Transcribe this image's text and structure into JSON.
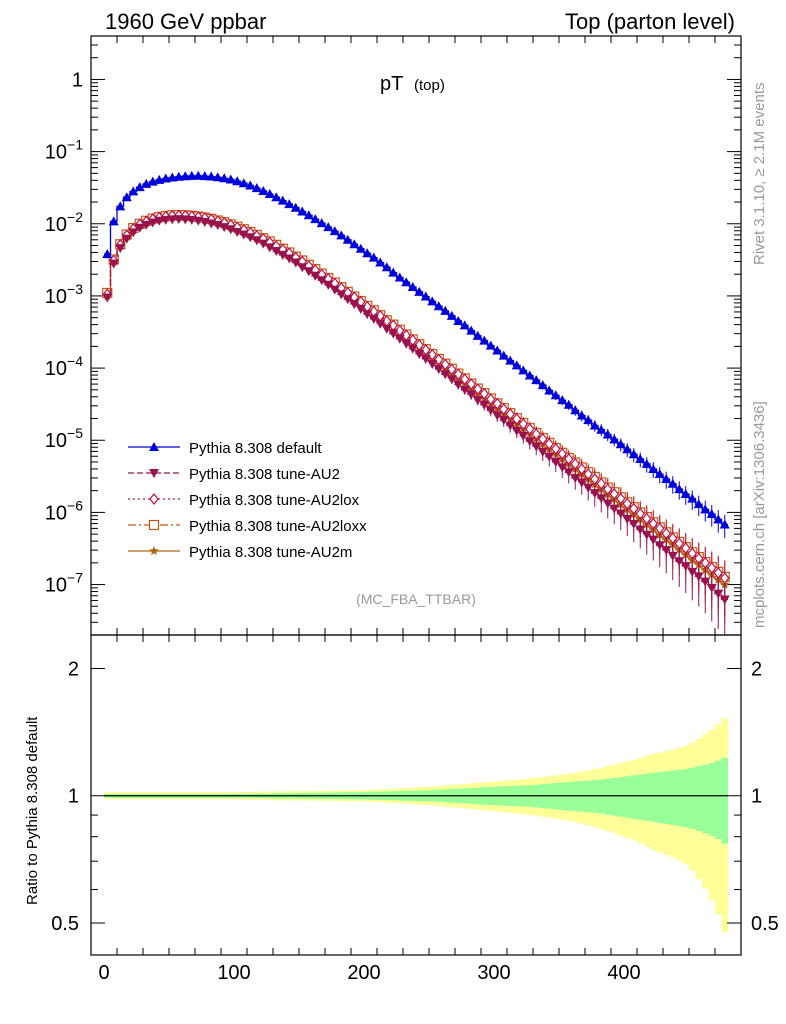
{
  "header": {
    "left": "1960 GeV ppbar",
    "right": "Top (parton level)"
  },
  "side_labels": {
    "rivet": "Rivet 3.1.10, ≥ 2.1M events",
    "mcplots": "mcplots.cern.ch [arXiv:1306.3436]"
  },
  "colors": {
    "default": "#0000dd",
    "au2": "#99114d",
    "au2lox": "#bb1144",
    "au2loxx": "#cc5511",
    "au2m": "#aa6611",
    "band_inner": "#99ff99",
    "band_outer": "#ffff99"
  },
  "chart_data": [
    {
      "type": "line",
      "title": "pT",
      "title_sub": "(top)",
      "analysis_label": "(MC_FBA_TTBAR)",
      "ylog": true,
      "ylim": [
        2e-08,
        4
      ],
      "xlim": [
        -10,
        490
      ],
      "y_tick_labels": [
        "1",
        "10^-1",
        "10^-2",
        "10^-3",
        "10^-4",
        "10^-5",
        "10^-6",
        "10^-7"
      ],
      "legend_position": "bottom-left",
      "x": [
        2.5,
        7.5,
        12.5,
        17.5,
        22.5,
        27.5,
        32.5,
        37.5,
        42.5,
        47.5,
        52.5,
        57.5,
        62.5,
        67.5,
        72.5,
        77.5,
        82.5,
        87.5,
        92.5,
        97.5,
        102.5,
        107.5,
        112.5,
        117.5,
        122.5,
        127.5,
        132.5,
        137.5,
        142.5,
        147.5,
        152.5,
        157.5,
        162.5,
        167.5,
        172.5,
        177.5,
        182.5,
        187.5,
        192.5,
        197.5,
        202.5,
        207.5,
        212.5,
        217.5,
        222.5,
        227.5,
        232.5,
        237.5,
        242.5,
        247.5,
        252.5,
        257.5,
        262.5,
        267.5,
        272.5,
        277.5,
        282.5,
        287.5,
        292.5,
        297.5,
        302.5,
        307.5,
        312.5,
        317.5,
        322.5,
        327.5,
        332.5,
        337.5,
        342.5,
        347.5,
        352.5,
        357.5,
        362.5,
        367.5,
        372.5,
        377.5,
        382.5,
        387.5,
        392.5,
        397.5,
        402.5,
        407.5,
        412.5,
        417.5,
        422.5,
        427.5,
        432.5,
        437.5,
        442.5,
        447.5,
        452.5,
        457.5,
        462.5,
        467.5,
        472.5,
        477.5
      ],
      "series": [
        {
          "name": "Pythia 8.308 default",
          "marker": "triangle-up",
          "dash": "",
          "values": [
            0.0038,
            0.0108,
            0.0174,
            0.0233,
            0.0281,
            0.0322,
            0.0357,
            0.0384,
            0.0405,
            0.0424,
            0.0438,
            0.0448,
            0.0456,
            0.0461,
            0.0462,
            0.0458,
            0.0451,
            0.0441,
            0.0427,
            0.041,
            0.0389,
            0.0365,
            0.0339,
            0.0312,
            0.0285,
            0.0258,
            0.0233,
            0.0209,
            0.0187,
            0.0167,
            0.0148,
            0.0131,
            0.0116,
            0.0102,
            0.009,
            0.0079,
            0.0069,
            0.006,
            0.0052,
            0.0045,
            0.0039,
            0.0034,
            0.0029,
            0.0025,
            0.0021,
            0.0018,
            0.00155,
            0.00133,
            0.00114,
            0.00098,
            0.00084,
            0.00072,
            0.00062,
            0.00053,
            0.00045,
            0.00039,
            0.00033,
            0.00028,
            0.00024,
            0.000205,
            0.000175,
            0.000149,
            0.000127,
            0.000109,
            9.3e-05,
            7.9e-05,
            6.8e-05,
            5.8e-05,
            4.9e-05,
            4.2e-05,
            3.6e-05,
            3.1e-05,
            2.6e-05,
            2.2e-05,
            1.9e-05,
            1.6e-05,
            1.4e-05,
            1.2e-05,
            1.03e-05,
            8.8e-06,
            7.5e-06,
            6.4e-06,
            5.5e-06,
            4.7e-06,
            4e-06,
            3.4e-06,
            2.9e-06,
            2.5e-06,
            2.1e-06,
            1.8e-06,
            1.55e-06,
            1.3e-06,
            1.1e-06,
            9.5e-07,
            8e-07,
            6.8e-07
          ]
        },
        {
          "name": "Pythia 8.308 tune-AU2",
          "marker": "triangle-down",
          "dash": "6,3",
          "values": [
            0.00095,
            0.0028,
            0.0046,
            0.0062,
            0.0076,
            0.0088,
            0.0097,
            0.0104,
            0.011,
            0.0113,
            0.0115,
            0.0116,
            0.0115,
            0.0113,
            0.011,
            0.0106,
            0.0101,
            0.0096,
            0.009,
            0.0084,
            0.0077,
            0.0071,
            0.0065,
            0.0059,
            0.0053,
            0.0047,
            0.0042,
            0.0037,
            0.0033,
            0.0029,
            0.0025,
            0.0022,
            0.0019,
            0.00165,
            0.00142,
            0.00122,
            0.00105,
            0.0009,
            0.00077,
            0.00066,
            0.00056,
            0.00048,
            0.00041,
            0.00035,
            0.0003,
            0.000255,
            0.000217,
            0.000185,
            0.000157,
            0.000134,
            0.000114,
            9.7e-05,
            8.2e-05,
            7e-05,
            5.9e-05,
            5e-05,
            4.3e-05,
            3.6e-05,
            3.1e-05,
            2.6e-05,
            2.2e-05,
            1.9e-05,
            1.6e-05,
            1.35e-05,
            1.15e-05,
            9.7e-06,
            8.2e-06,
            6.9e-06,
            5.9e-06,
            5e-06,
            4.2e-06,
            3.6e-06,
            3e-06,
            2.6e-06,
            2.2e-06,
            1.85e-06,
            1.57e-06,
            1.33e-06,
            1.13e-06,
            9.6e-07,
            8.1e-07,
            6.9e-07,
            5.8e-07,
            4.9e-07,
            4.2e-07,
            3.5e-07,
            3e-07,
            2.5e-07,
            2.1e-07,
            1.8e-07,
            1.5e-07,
            1.3e-07,
            1.1e-07,
            9e-08,
            7.5e-08,
            6.2e-08
          ]
        },
        {
          "name": "Pythia 8.308 tune-AU2lox",
          "marker": "diamond-open",
          "dash": "2,3",
          "values": [
            0.00105,
            0.0031,
            0.0051,
            0.0069,
            0.0085,
            0.0098,
            0.0108,
            0.0116,
            0.0122,
            0.0126,
            0.0129,
            0.013,
            0.0129,
            0.0127,
            0.0124,
            0.012,
            0.0115,
            0.0109,
            0.0103,
            0.0096,
            0.0089,
            0.0082,
            0.0075,
            0.0068,
            0.0062,
            0.0055,
            0.0049,
            0.0044,
            0.0039,
            0.0034,
            0.003,
            0.0026,
            0.00228,
            0.00198,
            0.00172,
            0.00149,
            0.00129,
            0.00111,
            0.00096,
            0.00083,
            0.00071,
            0.00061,
            0.00053,
            0.00045,
            0.00039,
            0.00033,
            0.000285,
            0.000244,
            0.000209,
            0.000179,
            0.000153,
            0.000131,
            0.000112,
            9.6e-05,
            8.2e-05,
            7e-05,
            6e-05,
            5.1e-05,
            4.4e-05,
            3.7e-05,
            3.2e-05,
            2.7e-05,
            2.3e-05,
            1.97e-05,
            1.68e-05,
            1.43e-05,
            1.22e-05,
            1.04e-05,
            8.9e-06,
            7.6e-06,
            6.5e-06,
            5.5e-06,
            4.7e-06,
            4e-06,
            3.4e-06,
            2.9e-06,
            2.5e-06,
            2.1e-06,
            1.8e-06,
            1.55e-06,
            1.32e-06,
            1.13e-06,
            9.6e-07,
            8.2e-07,
            7e-07,
            6e-07,
            5.1e-07,
            4.4e-07,
            3.7e-07,
            3.2e-07,
            2.7e-07,
            2.3e-07,
            2e-07,
            1.7e-07,
            1.45e-07,
            1.23e-07
          ]
        },
        {
          "name": "Pythia 8.308 tune-AU2loxx",
          "marker": "square-open",
          "dash": "8,3,2,3",
          "values": [
            0.0011,
            0.0032,
            0.0052,
            0.0071,
            0.0087,
            0.01,
            0.011,
            0.0118,
            0.0124,
            0.0128,
            0.0131,
            0.0132,
            0.0131,
            0.0129,
            0.0126,
            0.0122,
            0.0117,
            0.0111,
            0.0105,
            0.0098,
            0.0091,
            0.0084,
            0.0077,
            0.007,
            0.0063,
            0.0057,
            0.0051,
            0.0045,
            0.004,
            0.0035,
            0.0031,
            0.0027,
            0.00235,
            0.00204,
            0.00177,
            0.00153,
            0.00132,
            0.00114,
            0.00098,
            0.00085,
            0.00073,
            0.00063,
            0.00054,
            0.00046,
            0.0004,
            0.00034,
            0.000292,
            0.00025,
            0.000214,
            0.000183,
            0.000157,
            0.000134,
            0.000115,
            9.8e-05,
            8.4e-05,
            7.2e-05,
            6.1e-05,
            5.2e-05,
            4.5e-05,
            3.8e-05,
            3.25e-05,
            2.78e-05,
            2.37e-05,
            2.02e-05,
            1.73e-05,
            1.47e-05,
            1.26e-05,
            1.07e-05,
            9.2e-06,
            7.8e-06,
            6.7e-06,
            5.7e-06,
            4.9e-06,
            4.2e-06,
            3.6e-06,
            3.1e-06,
            2.6e-06,
            2.2e-06,
            1.9e-06,
            1.62e-06,
            1.38e-06,
            1.18e-06,
            1e-06,
            8.6e-07,
            7.3e-07,
            6.2e-07,
            5.3e-07,
            4.5e-07,
            3.9e-07,
            3.3e-07,
            2.8e-07,
            2.4e-07,
            2.05e-07,
            1.75e-07,
            1.5e-07,
            1.28e-07
          ]
        },
        {
          "name": "Pythia 8.308 tune-AU2m",
          "marker": "star",
          "dash": "",
          "values": [
            0.001,
            0.003,
            0.0049,
            0.0066,
            0.0081,
            0.0093,
            0.0103,
            0.011,
            0.0116,
            0.012,
            0.0122,
            0.0123,
            0.0122,
            0.012,
            0.0117,
            0.0113,
            0.0108,
            0.0102,
            0.0096,
            0.009,
            0.0083,
            0.0076,
            0.007,
            0.0063,
            0.0057,
            0.0051,
            0.0046,
            0.0041,
            0.0036,
            0.0032,
            0.0028,
            0.0024,
            0.0021,
            0.00182,
            0.00157,
            0.00136,
            0.00117,
            0.00101,
            0.00087,
            0.00075,
            0.00064,
            0.00055,
            0.00047,
            0.0004,
            0.00035,
            0.0003,
            0.000255,
            0.000218,
            0.000186,
            0.000159,
            0.000136,
            0.000116,
            9.9e-05,
            8.4e-05,
            7.2e-05,
            6.1e-05,
            5.2e-05,
            4.4e-05,
            3.8e-05,
            3.2e-05,
            2.75e-05,
            2.34e-05,
            2e-05,
            1.7e-05,
            1.45e-05,
            1.23e-05,
            1.05e-05,
            8.9e-06,
            7.6e-06,
            6.5e-06,
            5.5e-06,
            4.7e-06,
            4e-06,
            3.4e-06,
            2.9e-06,
            2.45e-06,
            2.1e-06,
            1.78e-06,
            1.52e-06,
            1.29e-06,
            1.1e-06,
            9.4e-07,
            8e-07,
            6.8e-07,
            5.8e-07,
            4.9e-07,
            4.2e-07,
            3.6e-07,
            3.05e-07,
            2.6e-07,
            2.2e-07,
            1.9e-07,
            1.6e-07,
            1.37e-07,
            1.17e-07,
            1e-07
          ]
        }
      ]
    },
    {
      "type": "area",
      "ylabel": "Ratio to Pythia 8.308 default",
      "ylog": true,
      "ylim": [
        0.42,
        2.4
      ],
      "y_ticks": [
        0.5,
        1,
        2
      ],
      "y_tick_labels": [
        "0.5",
        "1",
        "2"
      ],
      "x_ticks": [
        0,
        100,
        200,
        300,
        400
      ],
      "x_tick_labels": [
        "0",
        "100",
        "200",
        "300",
        "400"
      ],
      "band_x": [
        0,
        100,
        200,
        250,
        300,
        330,
        360,
        380,
        400,
        410,
        420,
        430,
        440,
        450,
        460,
        470,
        475,
        480
      ],
      "band_inner": [
        0.01,
        0.01,
        0.02,
        0.03,
        0.05,
        0.06,
        0.08,
        0.09,
        0.11,
        0.12,
        0.13,
        0.14,
        0.15,
        0.16,
        0.18,
        0.2,
        0.22,
        0.24
      ],
      "band_outer": [
        0.02,
        0.02,
        0.03,
        0.05,
        0.08,
        0.1,
        0.13,
        0.16,
        0.2,
        0.22,
        0.25,
        0.27,
        0.29,
        0.32,
        0.38,
        0.45,
        0.5,
        0.55
      ]
    }
  ]
}
